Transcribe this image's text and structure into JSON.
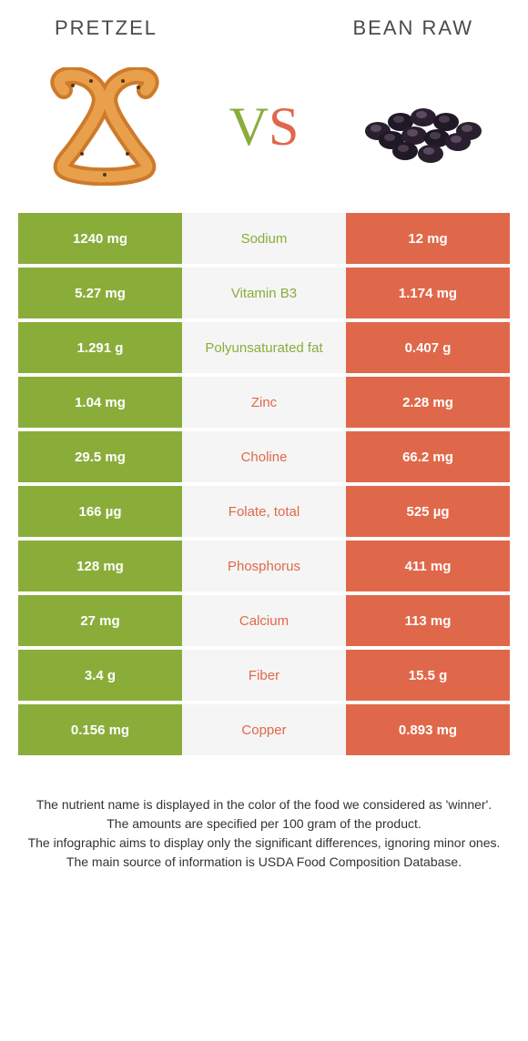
{
  "header": {
    "left_title": "PRETZEL",
    "right_title": "BEAN RAW"
  },
  "vs": {
    "v": "V",
    "s": "S"
  },
  "colors": {
    "left_bg": "#8aad3a",
    "right_bg": "#e0684a",
    "mid_bg": "#f5f5f5",
    "left_text": "#ffffff",
    "right_text": "#ffffff"
  },
  "rows": [
    {
      "left": "1240 mg",
      "label": "Sodium",
      "winner": "left",
      "right": "12 mg"
    },
    {
      "left": "5.27 mg",
      "label": "Vitamin B3",
      "winner": "left",
      "right": "1.174 mg"
    },
    {
      "left": "1.291 g",
      "label": "Polyunsaturated fat",
      "winner": "left",
      "right": "0.407 g"
    },
    {
      "left": "1.04 mg",
      "label": "Zinc",
      "winner": "right",
      "right": "2.28 mg"
    },
    {
      "left": "29.5 mg",
      "label": "Choline",
      "winner": "right",
      "right": "66.2 mg"
    },
    {
      "left": "166 µg",
      "label": "Folate, total",
      "winner": "right",
      "right": "525 µg"
    },
    {
      "left": "128 mg",
      "label": "Phosphorus",
      "winner": "right",
      "right": "411 mg"
    },
    {
      "left": "27 mg",
      "label": "Calcium",
      "winner": "right",
      "right": "113 mg"
    },
    {
      "left": "3.4 g",
      "label": "Fiber",
      "winner": "right",
      "right": "15.5 g"
    },
    {
      "left": "0.156 mg",
      "label": "Copper",
      "winner": "right",
      "right": "0.893 mg"
    }
  ],
  "footer": {
    "line1": "The nutrient name is displayed in the color of the food we considered as 'winner'.",
    "line2": "The amounts are specified per 100 gram of the product.",
    "line3": "The infographic aims to display only the significant differences, ignoring minor ones.",
    "line4": "The main source of information is USDA Food Composition Database."
  }
}
